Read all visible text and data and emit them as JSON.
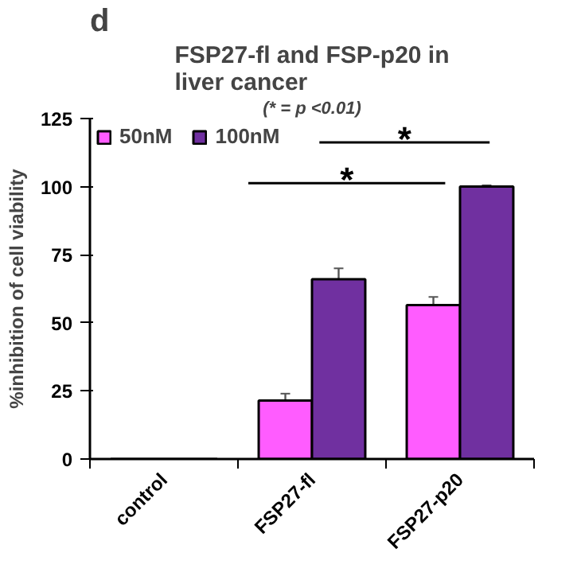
{
  "chart_data": {
    "type": "bar",
    "title": "FSP27-fl and FSP-p20 in\nliver cancer",
    "subtitle": "(* = p <0.01)",
    "ylabel": "%inhibition of cell viability",
    "categories": [
      "control",
      "FSP27-fl",
      "FSP27-p20"
    ],
    "series": [
      {
        "name": "50nM",
        "color": "#ff5cff",
        "values": [
          0,
          21.5,
          56.5
        ],
        "errors": [
          null,
          2.5,
          3
        ]
      },
      {
        "name": "100nM",
        "color": "#7030a0",
        "values": [
          0,
          66,
          100
        ],
        "errors": [
          null,
          4,
          0.5
        ]
      }
    ],
    "ylim": [
      0,
      125
    ],
    "yticks": [
      0,
      25,
      50,
      75,
      100,
      125
    ],
    "grid": false,
    "legend": "top",
    "annotations": [
      "d",
      "*",
      "*"
    ]
  }
}
